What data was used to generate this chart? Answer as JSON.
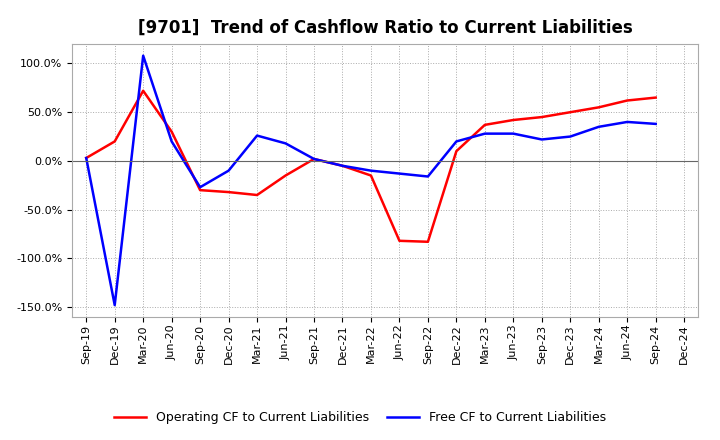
{
  "title": "[9701]  Trend of Cashflow Ratio to Current Liabilities",
  "x_labels": [
    "Sep-19",
    "Dec-19",
    "Mar-20",
    "Jun-20",
    "Sep-20",
    "Dec-20",
    "Mar-21",
    "Jun-21",
    "Sep-21",
    "Dec-21",
    "Mar-22",
    "Jun-22",
    "Sep-22",
    "Dec-22",
    "Mar-23",
    "Jun-23",
    "Sep-23",
    "Dec-23",
    "Mar-24",
    "Jun-24",
    "Sep-24",
    "Dec-24"
  ],
  "operating_cf": [
    3.0,
    20.0,
    72.0,
    30.0,
    -30.0,
    -32.0,
    -35.0,
    -15.0,
    2.0,
    -5.0,
    -15.0,
    -82.0,
    -83.0,
    10.0,
    37.0,
    42.0,
    45.0,
    50.0,
    55.0,
    62.0,
    65.0,
    null
  ],
  "free_cf": [
    3.0,
    -148.0,
    108.0,
    20.0,
    -27.0,
    -10.0,
    26.0,
    18.0,
    2.0,
    -5.0,
    -10.0,
    -13.0,
    -16.0,
    20.0,
    28.0,
    28.0,
    22.0,
    25.0,
    35.0,
    40.0,
    38.0,
    null
  ],
  "operating_color": "#ff0000",
  "free_color": "#0000ff",
  "bg_color": "#ffffff",
  "plot_bg_color": "#ffffff",
  "ylim": [
    -160,
    120
  ],
  "yticks": [
    -150,
    -100,
    -50,
    0,
    50,
    100
  ],
  "legend_op": "Operating CF to Current Liabilities",
  "legend_free": "Free CF to Current Liabilities",
  "title_fontsize": 12,
  "axis_fontsize": 8,
  "legend_fontsize": 9
}
